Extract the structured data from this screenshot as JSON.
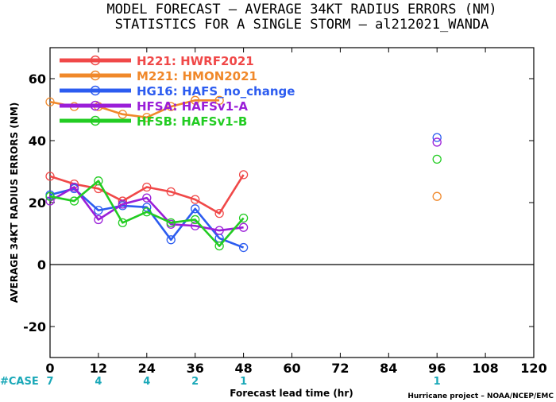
{
  "chart_data": {
    "type": "line",
    "title": "MODEL FORECAST – AVERAGE 34KT RADIUS ERRORS (NM)",
    "subtitle": "STATISTICS FOR A SINGLE STORM – al212021_WANDA",
    "xlabel": "Forecast lead time (hr)",
    "ylabel": "AVERAGE 34KT RADIUS ERRORS (NM)",
    "xlim": [
      0,
      120
    ],
    "ylim": [
      -30,
      70
    ],
    "x_ticks": [
      0,
      12,
      24,
      36,
      48,
      60,
      72,
      84,
      96,
      108,
      120
    ],
    "y_ticks": [
      -20,
      0,
      20,
      40,
      60
    ],
    "zero_line": true,
    "legend_position": "top-left",
    "series": [
      {
        "name": "H221: HWRF2021",
        "color": "#f04848",
        "x": [
          0,
          6,
          12,
          18,
          24,
          30,
          36,
          42,
          48,
          96
        ],
        "y": [
          28.5,
          26,
          24.5,
          20.5,
          25,
          23.5,
          21,
          16.5,
          29,
          null
        ]
      },
      {
        "name": "M221: HMON2021",
        "color": "#f0882a",
        "x": [
          0,
          6,
          12,
          18,
          24,
          30,
          36,
          42,
          48,
          96
        ],
        "y": [
          52.5,
          51,
          51,
          48.5,
          47.5,
          51,
          53,
          53,
          null,
          22
        ]
      },
      {
        "name": "HG16: HAFS_no_change",
        "color": "#2c5cf0",
        "x": [
          0,
          6,
          12,
          18,
          24,
          30,
          36,
          42,
          48,
          96
        ],
        "y": [
          22.5,
          24.5,
          17.5,
          19,
          18.5,
          8,
          18,
          8.5,
          5.5,
          41
        ]
      },
      {
        "name": "HFSA: HAFSv1-A",
        "color": "#9a1ed8",
        "x": [
          0,
          6,
          12,
          18,
          24,
          30,
          36,
          42,
          48,
          96
        ],
        "y": [
          20.5,
          25,
          14.5,
          19.5,
          21.5,
          13,
          12.5,
          11,
          12,
          39.5
        ]
      },
      {
        "name": "HFSB: HAFSv1-B",
        "color": "#22cc22",
        "x": [
          0,
          6,
          12,
          18,
          24,
          30,
          36,
          42,
          48,
          96
        ],
        "y": [
          22,
          20.5,
          27,
          13.5,
          17,
          13.5,
          14.5,
          6,
          15,
          34
        ]
      }
    ],
    "cases": {
      "label": "#CASE",
      "x": [
        0,
        12,
        24,
        36,
        48,
        96
      ],
      "values": [
        "7",
        "4",
        "4",
        "2",
        "1",
        "1"
      ],
      "color": "#1aa8b8"
    },
    "credit": "Hurricane project – NOAA/NCEP/EMC"
  }
}
